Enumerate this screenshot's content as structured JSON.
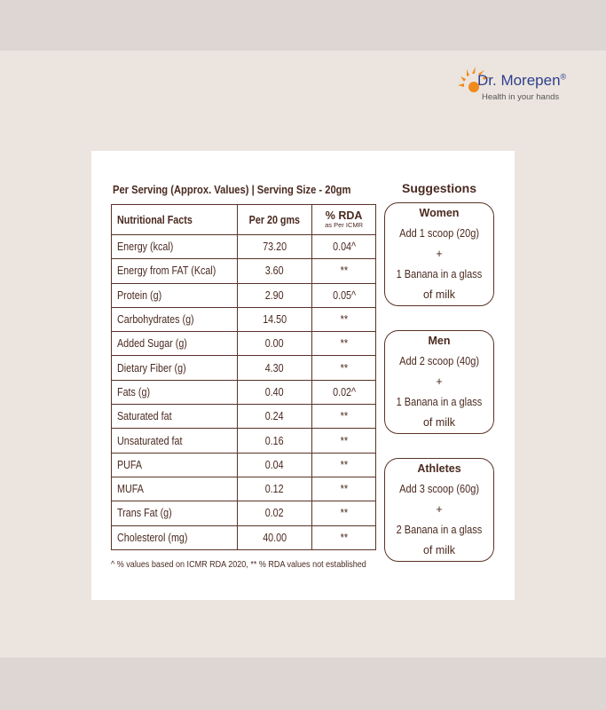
{
  "brand": {
    "name": "Dr. Morepen",
    "registered": "®",
    "tagline": "Health in your hands"
  },
  "header": "Per Serving (Approx. Values) | Serving Size - 20gm",
  "table": {
    "columns": [
      "Nutritional Facts",
      "Per 20 gms",
      "% RDA",
      "as Per ICMR"
    ],
    "rows": [
      [
        "Energy (kcal)",
        "73.20",
        "0.04^"
      ],
      [
        "Energy from FAT (Kcal)",
        "3.60",
        "**"
      ],
      [
        "Protein (g)",
        "2.90",
        "0.05^"
      ],
      [
        "Carbohydrates (g)",
        "14.50",
        "**"
      ],
      [
        "Added Sugar (g)",
        "0.00",
        "**"
      ],
      [
        "Dietary Fiber (g)",
        "4.30",
        "**"
      ],
      [
        "Fats (g)",
        "0.40",
        "0.02^"
      ],
      [
        "Saturated fat",
        "0.24",
        "**"
      ],
      [
        "Unsaturated fat",
        "0.16",
        "**"
      ],
      [
        "PUFA",
        "0.04",
        "**"
      ],
      [
        "MUFA",
        "0.12",
        "**"
      ],
      [
        "Trans Fat (g)",
        "0.02",
        "**"
      ],
      [
        "Cholesterol (mg)",
        "40.00",
        "**"
      ]
    ]
  },
  "footnote": "^ % values based on ICMR RDA 2020, ** % RDA values not established",
  "suggestions": {
    "title": "Suggestions",
    "items": [
      {
        "group": "Women",
        "line1": "Add 1 scoop (20g)",
        "plus": "+",
        "line2": "1 Banana in a glass",
        "line3": "of milk"
      },
      {
        "group": "Men",
        "line1": "Add 2 scoop (40g)",
        "plus": "+",
        "line2": "1 Banana in a glass",
        "line3": "of milk"
      },
      {
        "group": "Athletes",
        "line1": "Add 3 scoop (60g)",
        "plus": "+",
        "line2": "2 Banana in a glass",
        "line3": "of milk"
      }
    ]
  },
  "colors": {
    "text": "#4a2a20",
    "background": "#ece5df",
    "brand_blue": "#2e3f8c",
    "brand_orange": "#f08a1c"
  }
}
